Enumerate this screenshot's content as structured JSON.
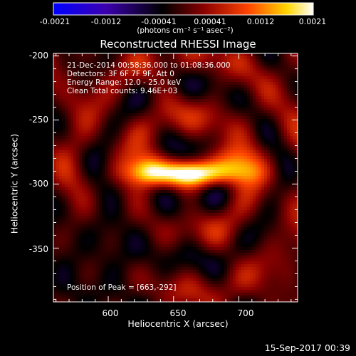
{
  "colorbar": {
    "ticks": [
      "-0.0021",
      "-0.0012",
      "-0.00041",
      "0.00041",
      "0.0012",
      "0.0021"
    ],
    "unit_label": "(photons cm⁻² s⁻¹ asec⁻²)",
    "colors": [
      "#0000ff",
      "#4400aa",
      "#000000",
      "#8b0000",
      "#ff4500",
      "#ffd700",
      "#ffffff"
    ]
  },
  "chart_data": {
    "type": "heatmap",
    "title": "Reconstructed RHESSI Image",
    "xlabel": "Heliocentric X (arcsec)",
    "ylabel": "Heliocentric Y (arcsec)",
    "xlim": [
      558,
      745
    ],
    "ylim": [
      -392,
      -198
    ],
    "xticks": [
      600,
      650,
      700
    ],
    "yticks": [
      -200,
      -250,
      -300,
      -350
    ],
    "peak": {
      "x": 663,
      "y": -292
    },
    "value_range": [
      -0.0021,
      0.0021
    ]
  },
  "info": {
    "time": "21-Dec-2014 00:58:36.000 to 01:08:36.000",
    "detectors": "Detectors: 3F 6F 7F 9F, Att 0",
    "energy": "Energy Range: 12.0 - 25.0 keV",
    "clean": "Clean     Total counts: 9.46E+03",
    "peak": "Position of Peak = [663,-292]"
  },
  "timestamp": "15-Sep-2017 00:39"
}
